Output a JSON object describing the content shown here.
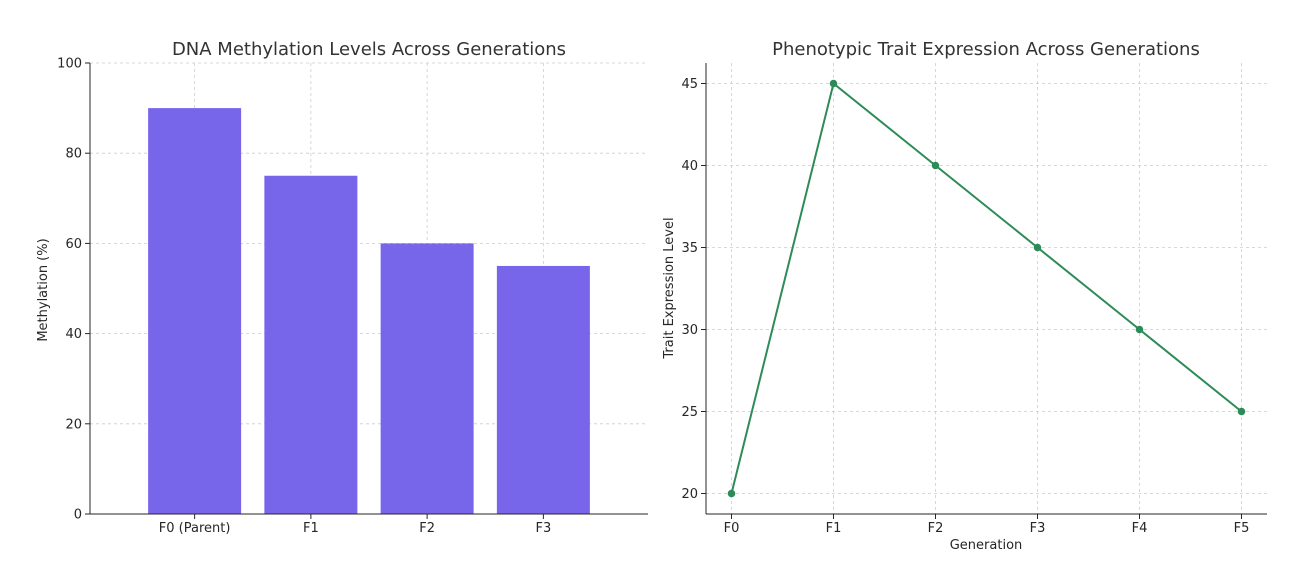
{
  "chart_data": [
    {
      "type": "bar",
      "title": "DNA Methylation Levels Across Generations",
      "xlabel": "",
      "ylabel": "Methylation (%)",
      "categories": [
        "F0 (Parent)",
        "F1",
        "F2",
        "F3"
      ],
      "values": [
        90,
        75,
        60,
        55
      ],
      "ylim": [
        0,
        100
      ],
      "yticks": [
        0,
        20,
        40,
        60,
        80,
        100
      ],
      "grid": true,
      "color": "#7866ea"
    },
    {
      "type": "line",
      "title": "Phenotypic Trait Expression Across Generations",
      "xlabel": "Generation",
      "ylabel": "Trait Expression Level",
      "x": [
        "F0",
        "F1",
        "F2",
        "F3",
        "F4",
        "F5"
      ],
      "y": [
        20,
        45,
        40,
        35,
        30,
        25
      ],
      "ylim": [
        18.75,
        46.25
      ],
      "yticks": [
        20,
        25,
        30,
        35,
        40,
        45
      ],
      "grid": true,
      "marker": "circle",
      "color": "#2e8b57"
    }
  ]
}
